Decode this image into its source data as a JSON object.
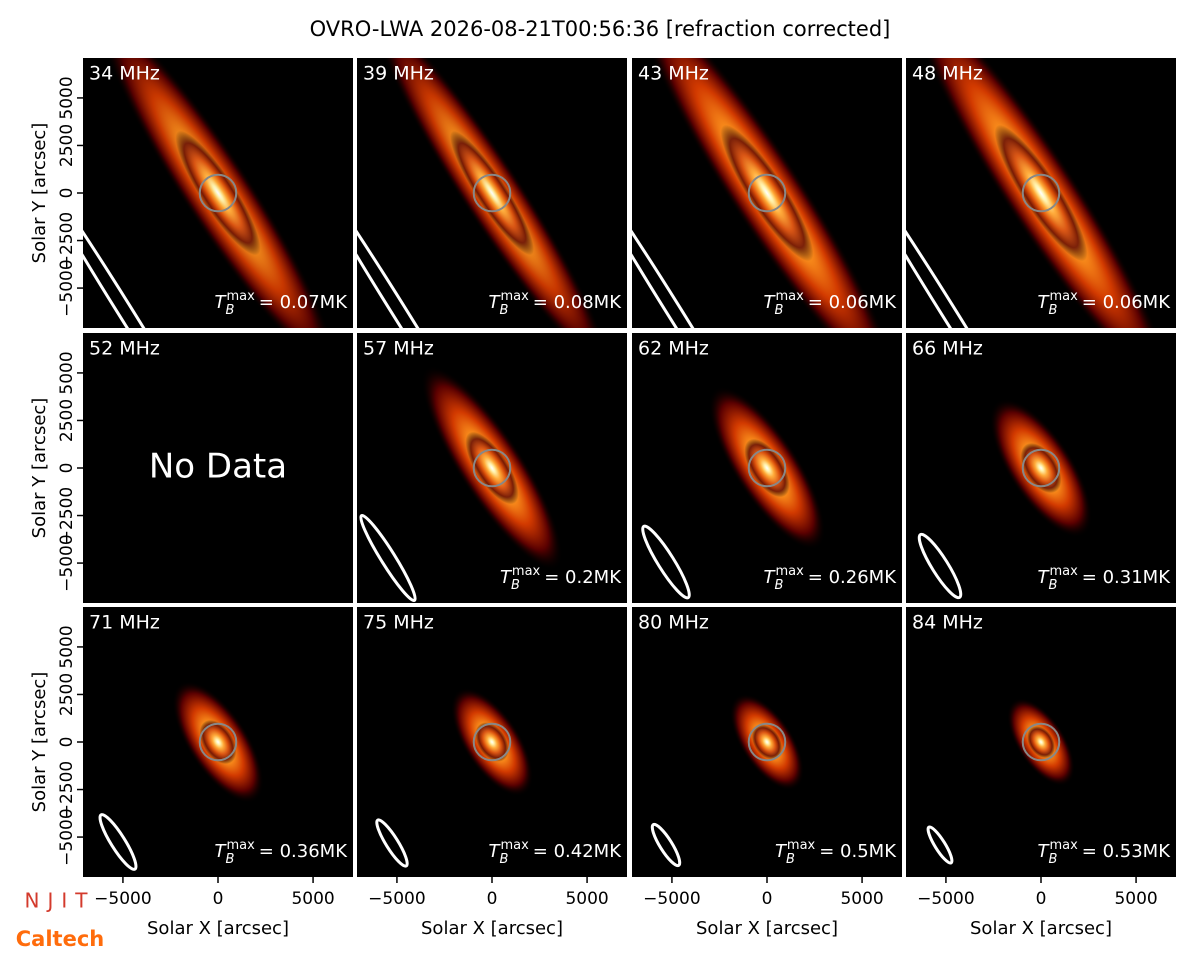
{
  "title": "OVRO-LWA 2026-08-21T00:56:36 [refraction corrected]",
  "tb_symbol": {
    "base": "T",
    "sub": "B",
    "sup": "max"
  },
  "logos": {
    "top": "NJIT",
    "bottom": "Caltech"
  },
  "chart_data": [
    {
      "type": "image",
      "title": "34 MHz",
      "tb_label": "= 0.07MK",
      "ylabel": "Solar Y [arcsec]",
      "xlim": [
        -7100,
        7100
      ],
      "ylim": [
        -7100,
        7100
      ],
      "yticks": [
        {
          "value": -5000,
          "label": "−5000"
        },
        {
          "value": -2500,
          "label": "−2500"
        },
        0,
        2500,
        5000
      ]
    },
    {
      "type": "image",
      "title": "39 MHz",
      "tb_label": "= 0.08MK",
      "xlim": [
        -7100,
        7100
      ],
      "ylim": [
        -7100,
        7100
      ]
    },
    {
      "type": "image",
      "title": "43 MHz",
      "tb_label": "= 0.06MK",
      "xlim": [
        -7100,
        7100
      ],
      "ylim": [
        -7100,
        7100
      ]
    },
    {
      "type": "image",
      "title": "48 MHz",
      "tb_label": "= 0.06MK",
      "xlim": [
        -7100,
        7100
      ],
      "ylim": [
        -7100,
        7100
      ]
    },
    {
      "type": "image",
      "title": "52 MHz",
      "annotation": "No Data",
      "ylabel": "Solar Y [arcsec]",
      "xlim": [
        -7100,
        7100
      ],
      "ylim": [
        -7100,
        7100
      ],
      "yticks": [
        {
          "value": -5000,
          "label": "−5000"
        },
        {
          "value": -2500,
          "label": "−2500"
        },
        0,
        2500,
        5000
      ]
    },
    {
      "type": "image",
      "title": "57 MHz",
      "tb_label": "= 0.2MK",
      "xlim": [
        -7100,
        7100
      ],
      "ylim": [
        -7100,
        7100
      ]
    },
    {
      "type": "image",
      "title": "62 MHz",
      "tb_label": "= 0.26MK",
      "xlim": [
        -7100,
        7100
      ],
      "ylim": [
        -7100,
        7100
      ]
    },
    {
      "type": "image",
      "title": "66 MHz",
      "tb_label": "= 0.31MK",
      "xlim": [
        -7100,
        7100
      ],
      "ylim": [
        -7100,
        7100
      ]
    },
    {
      "type": "image",
      "title": "71 MHz",
      "tb_label": "= 0.36MK",
      "xlabel": "Solar X [arcsec]",
      "ylabel": "Solar Y [arcsec]",
      "xlim": [
        -7100,
        7100
      ],
      "ylim": [
        -7100,
        7100
      ],
      "xticks": [
        {
          "value": -5000,
          "label": "−5000"
        },
        0,
        5000
      ],
      "yticks": [
        {
          "value": -5000,
          "label": "−5000"
        },
        {
          "value": -2500,
          "label": "−2500"
        },
        0,
        2500,
        5000
      ]
    },
    {
      "type": "image",
      "title": "75 MHz",
      "tb_label": "= 0.42MK",
      "xlabel": "Solar X [arcsec]",
      "xlim": [
        -7100,
        7100
      ],
      "ylim": [
        -7100,
        7100
      ],
      "xticks": [
        {
          "value": -5000,
          "label": "−5000"
        },
        0,
        5000
      ]
    },
    {
      "type": "image",
      "title": "80 MHz",
      "tb_label": "= 0.5MK",
      "xlabel": "Solar X [arcsec]",
      "xlim": [
        -7100,
        7100
      ],
      "ylim": [
        -7100,
        7100
      ],
      "xticks": [
        {
          "value": -5000,
          "label": "−5000"
        },
        0,
        5000
      ]
    },
    {
      "type": "image",
      "title": "84 MHz",
      "tb_label": "= 0.53MK",
      "xlabel": "Solar X [arcsec]",
      "xlim": [
        -7100,
        7100
      ],
      "ylim": [
        -7100,
        7100
      ],
      "xticks": [
        {
          "value": -5000,
          "label": "−5000"
        },
        0,
        5000
      ]
    }
  ]
}
